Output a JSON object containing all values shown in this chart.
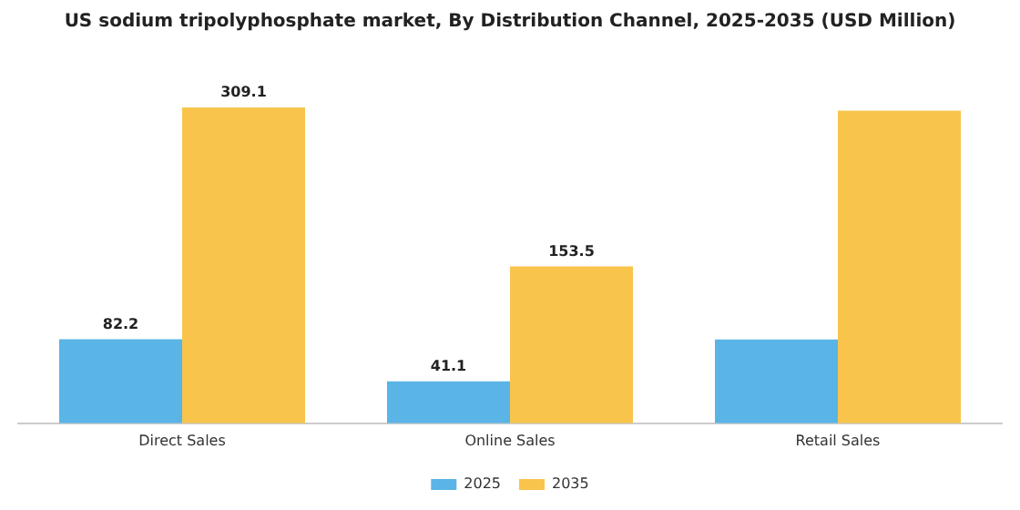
{
  "chart_data": {
    "type": "bar",
    "title": "US sodium tripolyphosphate market, By Distribution Channel, 2025-2035 (USD Million)",
    "categories": [
      "Direct Sales",
      "Online Sales",
      "Retail Sales"
    ],
    "series": [
      {
        "name": "2025",
        "color": "#5ab4e6",
        "values": [
          82.2,
          41.1,
          82
        ],
        "value_labels": [
          "82.2",
          "41.1",
          null
        ]
      },
      {
        "name": "2035",
        "color": "#f8c44c",
        "values": [
          309.1,
          153.5,
          306
        ],
        "value_labels": [
          "309.1",
          "153.5",
          null
        ]
      }
    ],
    "legend": "bottom",
    "grid": false
  }
}
